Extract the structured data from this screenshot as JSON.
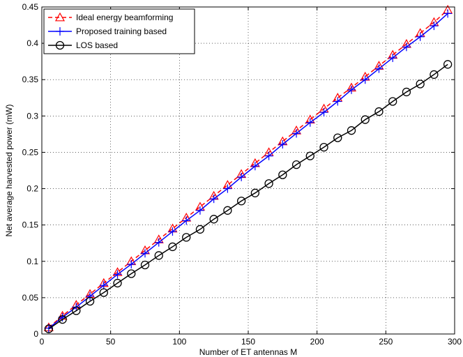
{
  "chart_data": {
    "type": "line",
    "title": "",
    "xlabel": "Number of ET antennas M",
    "ylabel": "Net average harvested power (mW)",
    "xlim": [
      0,
      300
    ],
    "ylim": [
      0,
      0.45
    ],
    "xticks": [
      0,
      50,
      100,
      150,
      200,
      250,
      300
    ],
    "yticks": [
      0,
      0.05,
      0.1,
      0.15,
      0.2,
      0.25,
      0.3,
      0.35,
      0.4,
      0.45
    ],
    "xtick_labels": [
      "0",
      "50",
      "100",
      "150",
      "200",
      "250",
      "300"
    ],
    "ytick_labels": [
      "0",
      "0.05",
      "0.1",
      "0.15",
      "0.2",
      "0.25",
      "0.3",
      "0.35",
      "0.4",
      "0.45"
    ],
    "grid": true,
    "grid_style": "dotted",
    "legend_position": "top-left",
    "x": [
      5,
      15,
      25,
      35,
      45,
      55,
      65,
      75,
      85,
      95,
      105,
      115,
      125,
      135,
      145,
      155,
      165,
      175,
      185,
      195,
      205,
      215,
      225,
      235,
      245,
      255,
      265,
      275,
      285,
      295
    ],
    "series": [
      {
        "name": "Ideal energy beamforming",
        "color": "#ff0000",
        "line_style": "dashed",
        "marker": "triangle",
        "values": [
          0.009,
          0.025,
          0.04,
          0.055,
          0.07,
          0.085,
          0.1,
          0.115,
          0.13,
          0.145,
          0.16,
          0.175,
          0.19,
          0.205,
          0.22,
          0.235,
          0.25,
          0.265,
          0.28,
          0.295,
          0.31,
          0.325,
          0.339,
          0.354,
          0.369,
          0.384,
          0.399,
          0.414,
          0.429,
          0.446
        ]
      },
      {
        "name": "Proposed training based",
        "color": "#0000ff",
        "line_style": "solid",
        "marker": "plus",
        "values": [
          0.008,
          0.023,
          0.037,
          0.052,
          0.067,
          0.082,
          0.096,
          0.111,
          0.126,
          0.141,
          0.156,
          0.17,
          0.186,
          0.2,
          0.216,
          0.231,
          0.245,
          0.261,
          0.276,
          0.291,
          0.305,
          0.32,
          0.336,
          0.35,
          0.365,
          0.38,
          0.395,
          0.409,
          0.424,
          0.441
        ]
      },
      {
        "name": "LOS based",
        "color": "#000000",
        "line_style": "solid",
        "marker": "circle",
        "values": [
          0.007,
          0.02,
          0.032,
          0.045,
          0.057,
          0.07,
          0.083,
          0.095,
          0.108,
          0.12,
          0.133,
          0.144,
          0.158,
          0.17,
          0.183,
          0.194,
          0.207,
          0.219,
          0.233,
          0.245,
          0.257,
          0.27,
          0.28,
          0.295,
          0.306,
          0.32,
          0.333,
          0.344,
          0.357,
          0.371
        ]
      }
    ]
  }
}
